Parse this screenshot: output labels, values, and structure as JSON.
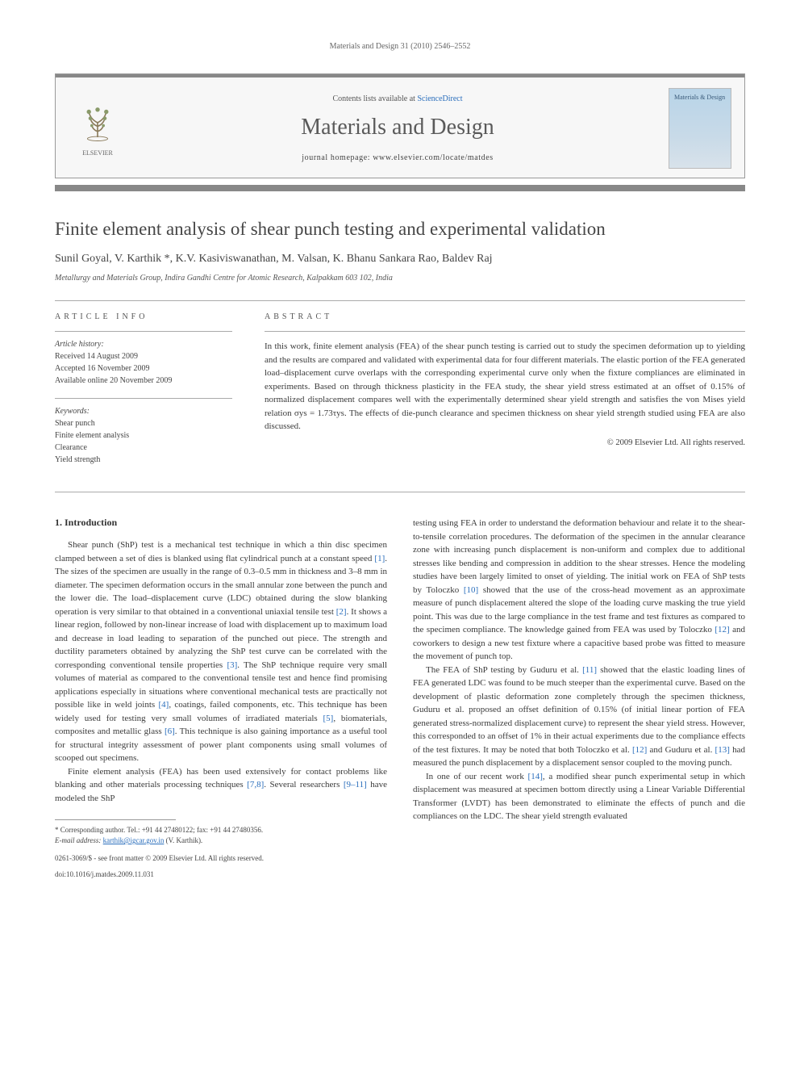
{
  "running_header": "Materials and Design 31 (2010) 2546–2552",
  "banner": {
    "contents_prefix": "Contents lists available at ",
    "contents_link": "ScienceDirect",
    "journal": "Materials and Design",
    "homepage_label": "journal homepage: www.elsevier.com/locate/matdes",
    "publisher_name": "ELSEVIER",
    "cover_text": "Materials & Design"
  },
  "article": {
    "title": "Finite element analysis of shear punch testing and experimental validation",
    "authors": "Sunil Goyal, V. Karthik *, K.V. Kasiviswanathan, M. Valsan, K. Bhanu Sankara Rao, Baldev Raj",
    "affiliation": "Metallurgy and Materials Group, Indira Gandhi Centre for Atomic Research, Kalpakkam 603 102, India"
  },
  "info": {
    "heading": "ARTICLE INFO",
    "history_label": "Article history:",
    "history": "Received 14 August 2009\nAccepted 16 November 2009\nAvailable online 20 November 2009",
    "keywords_label": "Keywords:",
    "keywords": "Shear punch\nFinite element analysis\nClearance\nYield strength"
  },
  "abstract": {
    "heading": "ABSTRACT",
    "text": "In this work, finite element analysis (FEA) of the shear punch testing is carried out to study the specimen deformation up to yielding and the results are compared and validated with experimental data for four different materials. The elastic portion of the FEA generated load–displacement curve overlaps with the corresponding experimental curve only when the fixture compliances are eliminated in experiments. Based on through thickness plasticity in the FEA study, the shear yield stress estimated at an offset of 0.15% of normalized displacement compares well with the experimentally determined shear yield strength and satisfies the von Mises yield relation σys = 1.73τys. The effects of die-punch clearance and specimen thickness on shear yield strength studied using FEA are also discussed.",
    "copyright": "© 2009 Elsevier Ltd. All rights reserved."
  },
  "body": {
    "section1_head": "1. Introduction",
    "left": {
      "p1": "Shear punch (ShP) test is a mechanical test technique in which a thin disc specimen clamped between a set of dies is blanked using flat cylindrical punch at a constant speed [1]. The sizes of the specimen are usually in the range of 0.3–0.5 mm in thickness and 3–8 mm in diameter. The specimen deformation occurs in the small annular zone between the punch and the lower die. The load–displacement curve (LDC) obtained during the slow blanking operation is very similar to that obtained in a conventional uniaxial tensile test [2]. It shows a linear region, followed by non-linear increase of load with displacement up to maximum load and decrease in load leading to separation of the punched out piece. The strength and ductility parameters obtained by analyzing the ShP test curve can be correlated with the corresponding conventional tensile properties [3]. The ShP technique require very small volumes of material as compared to the conventional tensile test and hence find promising applications especially in situations where conventional mechanical tests are practically not possible like in weld joints [4], coatings, failed components, etc. This technique has been widely used for testing very small volumes of irradiated materials [5], biomaterials, composites and metallic glass [6]. This technique is also gaining importance as a useful tool for structural integrity assessment of power plant components using small volumes of scooped out specimens.",
      "p2": "Finite element analysis (FEA) has been used extensively for contact problems like blanking and other materials processing techniques [7,8]. Several researchers [9–11] have modeled the ShP"
    },
    "right": {
      "p1": "testing using FEA in order to understand the deformation behaviour and relate it to the shear-to-tensile correlation procedures. The deformation of the specimen in the annular clearance zone with increasing punch displacement is non-uniform and complex due to additional stresses like bending and compression in addition to the shear stresses. Hence the modeling studies have been largely limited to onset of yielding. The initial work on FEA of ShP tests by Toloczko [10] showed that the use of the cross-head movement as an approximate measure of punch displacement altered the slope of the loading curve masking the true yield point. This was due to the large compliance in the test frame and test fixtures as compared to the specimen compliance. The knowledge gained from FEA was used by Toloczko [12] and coworkers to design a new test fixture where a capacitive based probe was fitted to measure the movement of punch top.",
      "p2": "The FEA of ShP testing by Guduru et al. [11] showed that the elastic loading lines of FEA generated LDC was found to be much steeper than the experimental curve. Based on the development of plastic deformation zone completely through the specimen thickness, Guduru et al. proposed an offset definition of 0.15% (of initial linear portion of FEA generated stress-normalized displacement curve) to represent the shear yield stress. However, this corresponded to an offset of 1% in their actual experiments due to the compliance effects of the test fixtures. It may be noted that both Toloczko et al. [12] and Guduru et al. [13] had measured the punch displacement by a displacement sensor coupled to the moving punch.",
      "p3": "In one of our recent work [14], a modified shear punch experimental setup in which displacement was measured at specimen bottom directly using a Linear Variable Differential Transformer (LVDT) has been demonstrated to eliminate the effects of punch and die compliances on the LDC. The shear yield strength evaluated"
    }
  },
  "footnote": {
    "corr": "* Corresponding author. Tel.: +91 44 27480122; fax: +91 44 27480356.",
    "email_label": "E-mail address:",
    "email": "karthik@igcar.gov.in",
    "email_suffix": "(V. Karthik).",
    "front_matter": "0261-3069/$ - see front matter © 2009 Elsevier Ltd. All rights reserved.",
    "doi": "doi:10.1016/j.matdes.2009.11.031"
  },
  "colors": {
    "link": "#2a6ebc",
    "rule": "#aaaaaa",
    "text": "#3a3a3a",
    "banner_bg": "#f7f7f7",
    "banner_bar": "#888888"
  }
}
